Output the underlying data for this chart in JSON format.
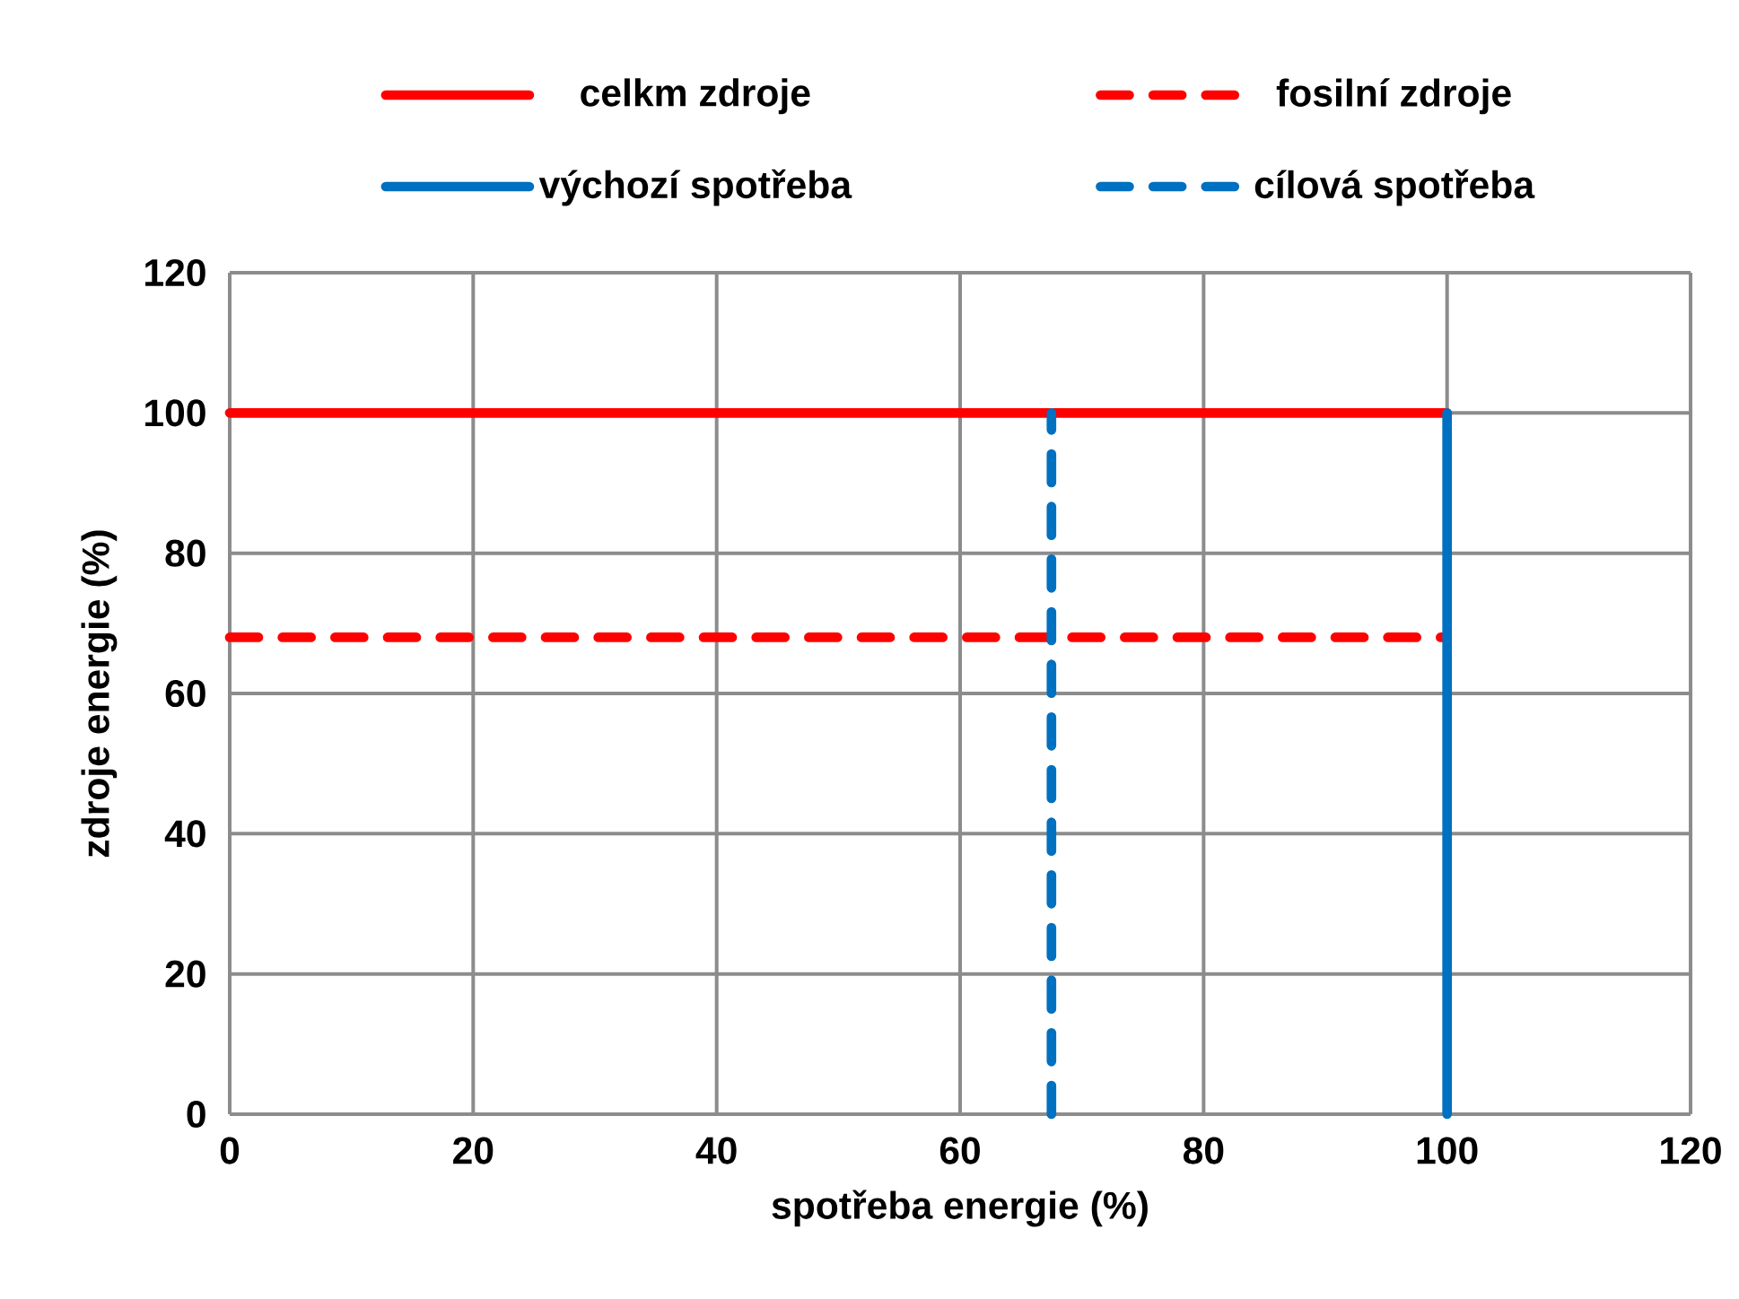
{
  "chart_data": {
    "type": "line",
    "xlabel": "spotřeba energie (%)",
    "ylabel": "zdroje energie (%)",
    "xlim": [
      0,
      120
    ],
    "xticks": [
      0,
      20,
      40,
      60,
      80,
      100,
      120
    ],
    "ylim": [
      0,
      120
    ],
    "yticks": [
      0,
      20,
      40,
      60,
      80,
      100,
      120
    ],
    "grid": true,
    "legend": "top",
    "marker": "none",
    "series": [
      {
        "name": "celkm zdroje",
        "color": "#ff0000",
        "line_style": "solid",
        "x": [
          0,
          100
        ],
        "values": [
          100,
          100
        ]
      },
      {
        "name": "fosilní zdroje",
        "color": "#ff0000",
        "line_style": "dashed",
        "x": [
          0,
          100
        ],
        "values": [
          68,
          68
        ]
      },
      {
        "name": "výchozí spotřeba",
        "color": "#0070c0",
        "line_style": "solid",
        "x": [
          100,
          100
        ],
        "values": [
          0,
          100
        ]
      },
      {
        "name": "cílová spotřeba",
        "color": "#0070c0",
        "line_style": "dashed",
        "x": [
          67.5,
          67.5
        ],
        "values": [
          0,
          100
        ]
      }
    ]
  }
}
